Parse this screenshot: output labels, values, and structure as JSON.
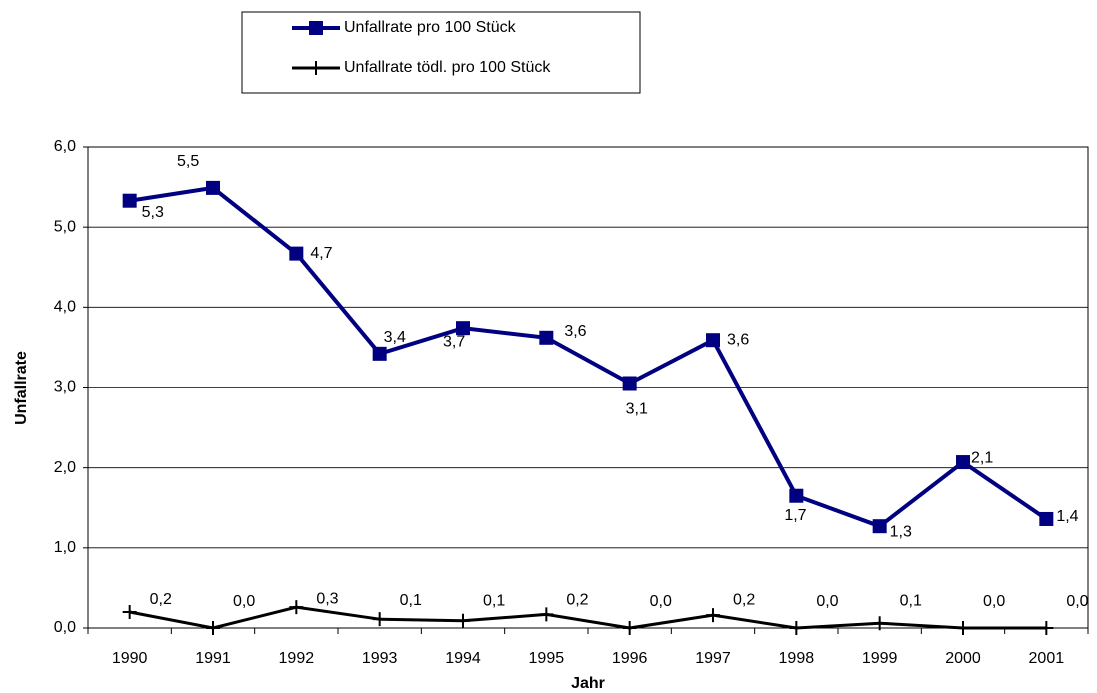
{
  "chart_data": {
    "type": "line",
    "categories": [
      "1990",
      "1991",
      "1992",
      "1993",
      "1994",
      "1995",
      "1996",
      "1997",
      "1998",
      "1999",
      "2000",
      "2001"
    ],
    "series": [
      {
        "name": "Unfallrate pro 100 Stück",
        "color": "#000080",
        "marker": "square",
        "values": [
          5.33,
          5.49,
          4.67,
          3.42,
          3.74,
          3.62,
          3.05,
          3.59,
          1.65,
          1.27,
          2.07,
          1.36
        ],
        "value_labels": [
          "5,3",
          "5,5",
          "4,7",
          "3,4",
          "3,7",
          "3,6",
          "3,1",
          "3,6",
          "1,7",
          "1,3",
          "2,1",
          "1,4"
        ]
      },
      {
        "name": "Unfallrate tödl. pro 100 Stück",
        "color": "#000000",
        "marker": "plus",
        "values": [
          0.2,
          0,
          0.26,
          0.11,
          0.09,
          0.17,
          0,
          0.16,
          0,
          0.06,
          0,
          0
        ],
        "value_labels": [
          "0,2",
          "0,0",
          "0,3",
          "0,1",
          "0,1",
          "0,2",
          "0,0",
          "0,2",
          "0,0",
          "0,1",
          "0,0",
          "0,0"
        ]
      }
    ],
    "xlabel": "Jahr",
    "ylabel": "Unfallrate",
    "ylim": [
      0,
      6
    ],
    "yticks": [
      {
        "value": 0,
        "label": "0,0"
      },
      {
        "value": 1,
        "label": "1,0"
      },
      {
        "value": 2,
        "label": "2,0"
      },
      {
        "value": 3,
        "label": "3,0"
      },
      {
        "value": 4,
        "label": "4,0"
      },
      {
        "value": 5,
        "label": "5,0"
      },
      {
        "value": 6,
        "label": "6,0"
      }
    ],
    "grid": true,
    "legend": "top"
  }
}
